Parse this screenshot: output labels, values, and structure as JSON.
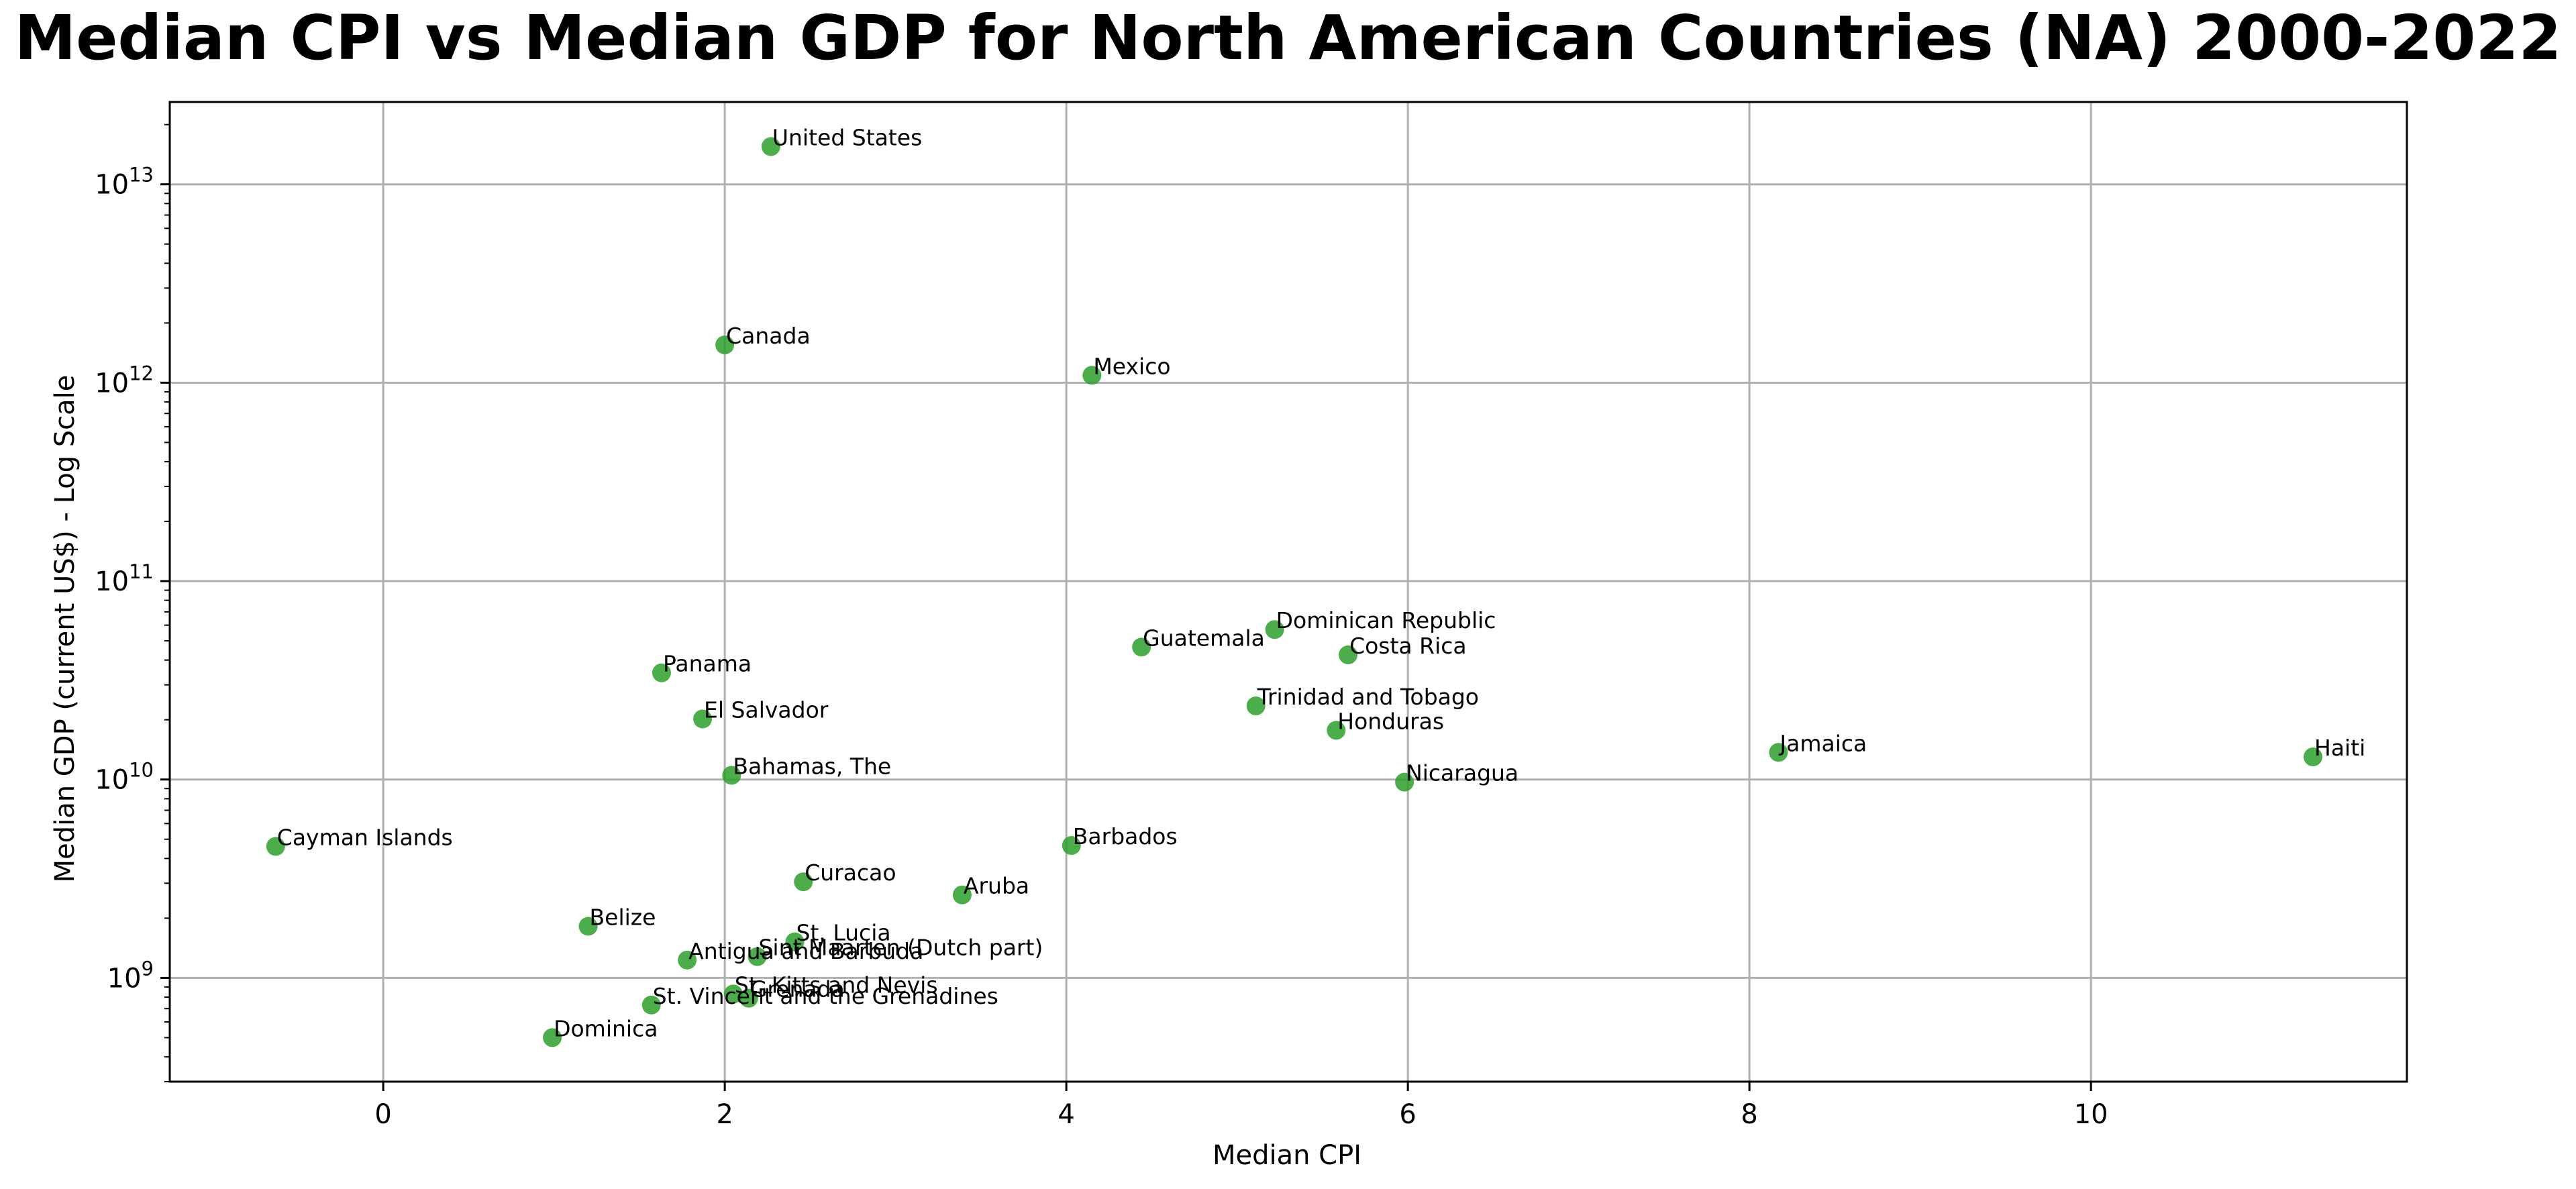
{
  "chart_data": {
    "type": "scatter",
    "title": "Median CPI vs Median GDP for North American Countries (NA) 2000-2022",
    "xlabel": "Median CPI",
    "ylabel": "Median GDP (current US$) - Log Scale",
    "xlim": [
      -1.25,
      11.85
    ],
    "ylim": [
      300000000.0,
      26000000000000.0
    ],
    "yscale": "log",
    "grid": true,
    "point_color": "#2ca02c",
    "point_alpha": 0.85,
    "xticks": [
      0,
      2,
      4,
      6,
      8,
      10
    ],
    "xtick_labels": [
      "0",
      "2",
      "4",
      "6",
      "8",
      "10"
    ],
    "yticks": [
      1000000000.0,
      10000000000.0,
      100000000000.0,
      1000000000000.0,
      10000000000000.0
    ],
    "ytick_labels": [
      {
        "base": "10",
        "exp": "9"
      },
      {
        "base": "10",
        "exp": "10"
      },
      {
        "base": "10",
        "exp": "11"
      },
      {
        "base": "10",
        "exp": "12"
      },
      {
        "base": "10",
        "exp": "13"
      }
    ],
    "points": [
      {
        "label": "United States",
        "x": 2.27,
        "y": 15500000000000.0
      },
      {
        "label": "Canada",
        "x": 2.0,
        "y": 1550000000000.0
      },
      {
        "label": "Mexico",
        "x": 4.15,
        "y": 1090000000000.0
      },
      {
        "label": "Dominican Republic",
        "x": 5.22,
        "y": 57000000000.0
      },
      {
        "label": "Guatemala",
        "x": 4.44,
        "y": 46500000000.0
      },
      {
        "label": "Costa Rica",
        "x": 5.65,
        "y": 42500000000.0
      },
      {
        "label": "Panama",
        "x": 1.63,
        "y": 34500000000.0
      },
      {
        "label": "Trinidad and Tobago",
        "x": 5.11,
        "y": 23500000000.0
      },
      {
        "label": "El Salvador",
        "x": 1.87,
        "y": 20200000000.0
      },
      {
        "label": "Honduras",
        "x": 5.58,
        "y": 17700000000.0
      },
      {
        "label": "Jamaica",
        "x": 8.17,
        "y": 13700000000.0
      },
      {
        "label": "Haiti",
        "x": 11.3,
        "y": 13000000000.0
      },
      {
        "label": "Bahamas, The",
        "x": 2.04,
        "y": 10500000000.0
      },
      {
        "label": "Nicaragua",
        "x": 5.98,
        "y": 9700000000.0
      },
      {
        "label": "Cayman Islands",
        "x": -0.63,
        "y": 4600000000.0
      },
      {
        "label": "Barbados",
        "x": 4.03,
        "y": 4650000000.0
      },
      {
        "label": "Curacao",
        "x": 2.46,
        "y": 3050000000.0
      },
      {
        "label": "Aruba",
        "x": 3.39,
        "y": 2620000000.0
      },
      {
        "label": "Belize",
        "x": 1.2,
        "y": 1820000000.0
      },
      {
        "label": "St. Lucia",
        "x": 2.41,
        "y": 1520000000.0
      },
      {
        "label": "Sint Maarten (Dutch part)",
        "x": 2.19,
        "y": 1280000000.0
      },
      {
        "label": "Antigua and Barbuda",
        "x": 1.78,
        "y": 1230000000.0
      },
      {
        "label": "St. Kitts and Nevis",
        "x": 2.05,
        "y": 830000000.0
      },
      {
        "label": "Grenada",
        "x": 2.14,
        "y": 790000000.0
      },
      {
        "label": "St. Vincent and the Grenadines",
        "x": 1.57,
        "y": 730000000.0
      },
      {
        "label": "Dominica",
        "x": 0.99,
        "y": 500000000.0
      }
    ]
  }
}
